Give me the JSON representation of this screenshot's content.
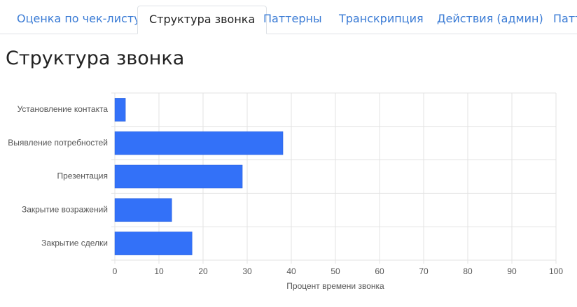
{
  "tabs": [
    "Оценка по чек-листу",
    "Структура звонка",
    "Паттерны",
    "Транскрипция",
    "Действия (админ)",
    "Патт"
  ],
  "active_tab": 1,
  "heading": "Структура звонка",
  "chart_data": {
    "type": "barh",
    "categories": [
      "Установление контакта",
      "Выявление потребностей",
      "Презентация",
      "Закрытие возражений",
      "Закрытие сделки"
    ],
    "values": [
      2.4,
      38.1,
      28.9,
      12.9,
      17.5
    ],
    "color": "#3371f8",
    "xlabel": "Процент времени звонка",
    "xlim": [
      0,
      100
    ],
    "xticks": [
      0,
      10,
      20,
      30,
      40,
      50,
      60,
      70,
      80,
      90,
      100
    ],
    "grid": true
  }
}
